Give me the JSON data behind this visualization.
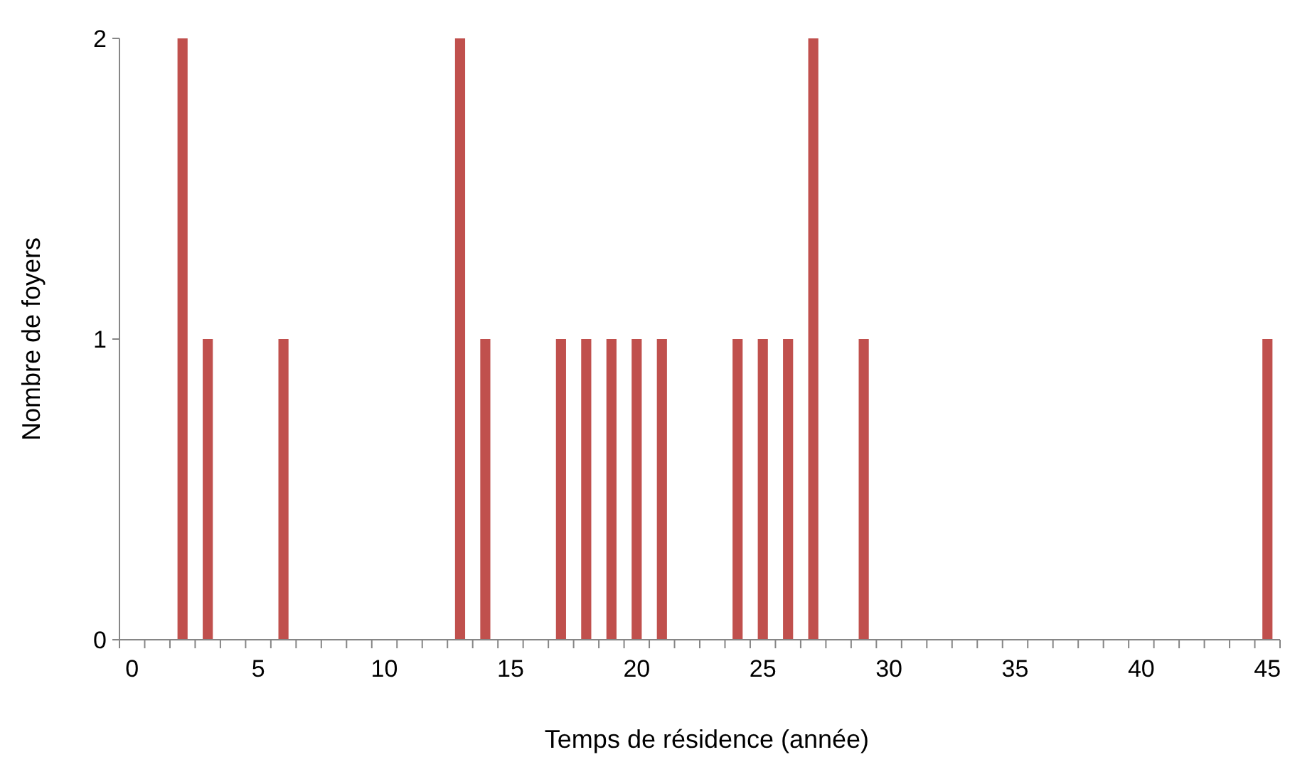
{
  "chart_data": {
    "type": "bar",
    "xlabel": "Temps de résidence (année)",
    "ylabel": "Nombre de foyers",
    "categories": [
      "0",
      null,
      null,
      null,
      null,
      "5",
      null,
      null,
      null,
      null,
      "10",
      null,
      null,
      null,
      null,
      "15",
      null,
      null,
      null,
      null,
      "20",
      null,
      null,
      null,
      null,
      "25",
      null,
      null,
      null,
      null,
      "30",
      null,
      null,
      null,
      null,
      "35",
      null,
      null,
      null,
      null,
      "40",
      null,
      null,
      null,
      null,
      "45"
    ],
    "values": [
      0,
      0,
      2,
      1,
      0,
      0,
      1,
      0,
      0,
      0,
      0,
      0,
      0,
      2,
      1,
      0,
      0,
      1,
      1,
      1,
      1,
      1,
      0,
      0,
      1,
      1,
      1,
      2,
      0,
      1,
      0,
      0,
      0,
      0,
      0,
      0,
      0,
      0,
      0,
      0,
      0,
      0,
      0,
      0,
      0,
      1
    ],
    "color": "#c0504d",
    "ylim": [
      0,
      2
    ],
    "yticks": [
      0,
      1,
      2
    ]
  }
}
